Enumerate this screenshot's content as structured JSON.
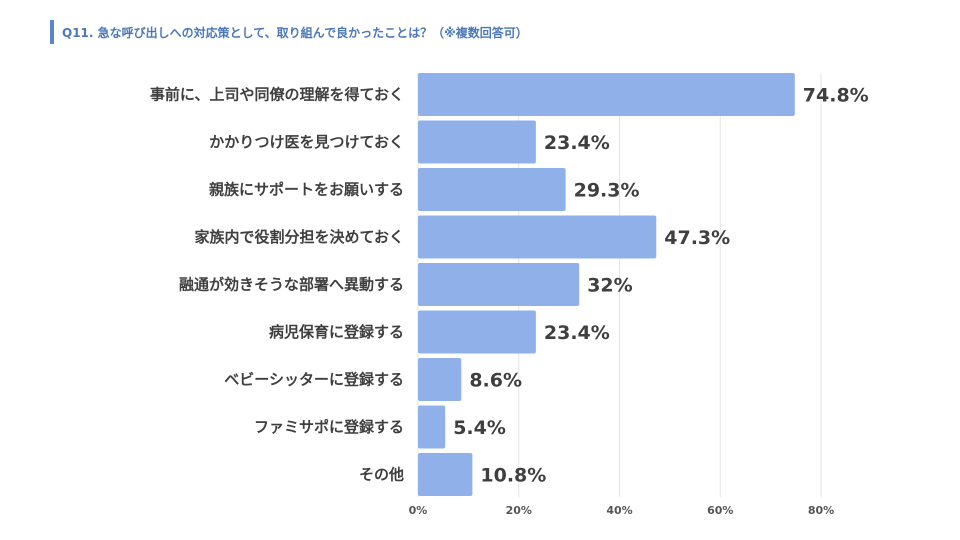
{
  "title": "Q11. 急な呼び出しへの対応策として、取り組んで良かったことは？（※複数回答可）",
  "colors": {
    "bar": "#8fb0e8",
    "grid": "#e6e6e6",
    "title": "#4a78b8",
    "accent": "#5b87c7"
  },
  "chart_data": {
    "type": "bar",
    "orientation": "horizontal",
    "title": "Q11. 急な呼び出しへの対応策として、取り組んで良かったことは？（※複数回答可）",
    "categories": [
      "事前に、上司や同僚の理解を得ておく",
      "かかりつけ医を見つけておく",
      "親族にサポートをお願いする",
      "家族内で役割分担を決めておく",
      "融通が効きそうな部署へ異動する",
      "病児保育に登録する",
      "ベビーシッターに登録する",
      "ファミサポに登録する",
      "その他"
    ],
    "values": [
      74.8,
      23.4,
      29.3,
      47.3,
      32,
      23.4,
      8.6,
      5.4,
      10.8
    ],
    "value_labels": [
      "74.8%",
      "23.4%",
      "29.3%",
      "47.3%",
      "32%",
      "23.4%",
      "8.6%",
      "5.4%",
      "10.8%"
    ],
    "xlim": [
      0,
      80
    ],
    "xticks": [
      0,
      20,
      40,
      60,
      80
    ],
    "xtick_labels": [
      "0%",
      "20%",
      "40%",
      "60%",
      "80%"
    ],
    "grid": true
  }
}
